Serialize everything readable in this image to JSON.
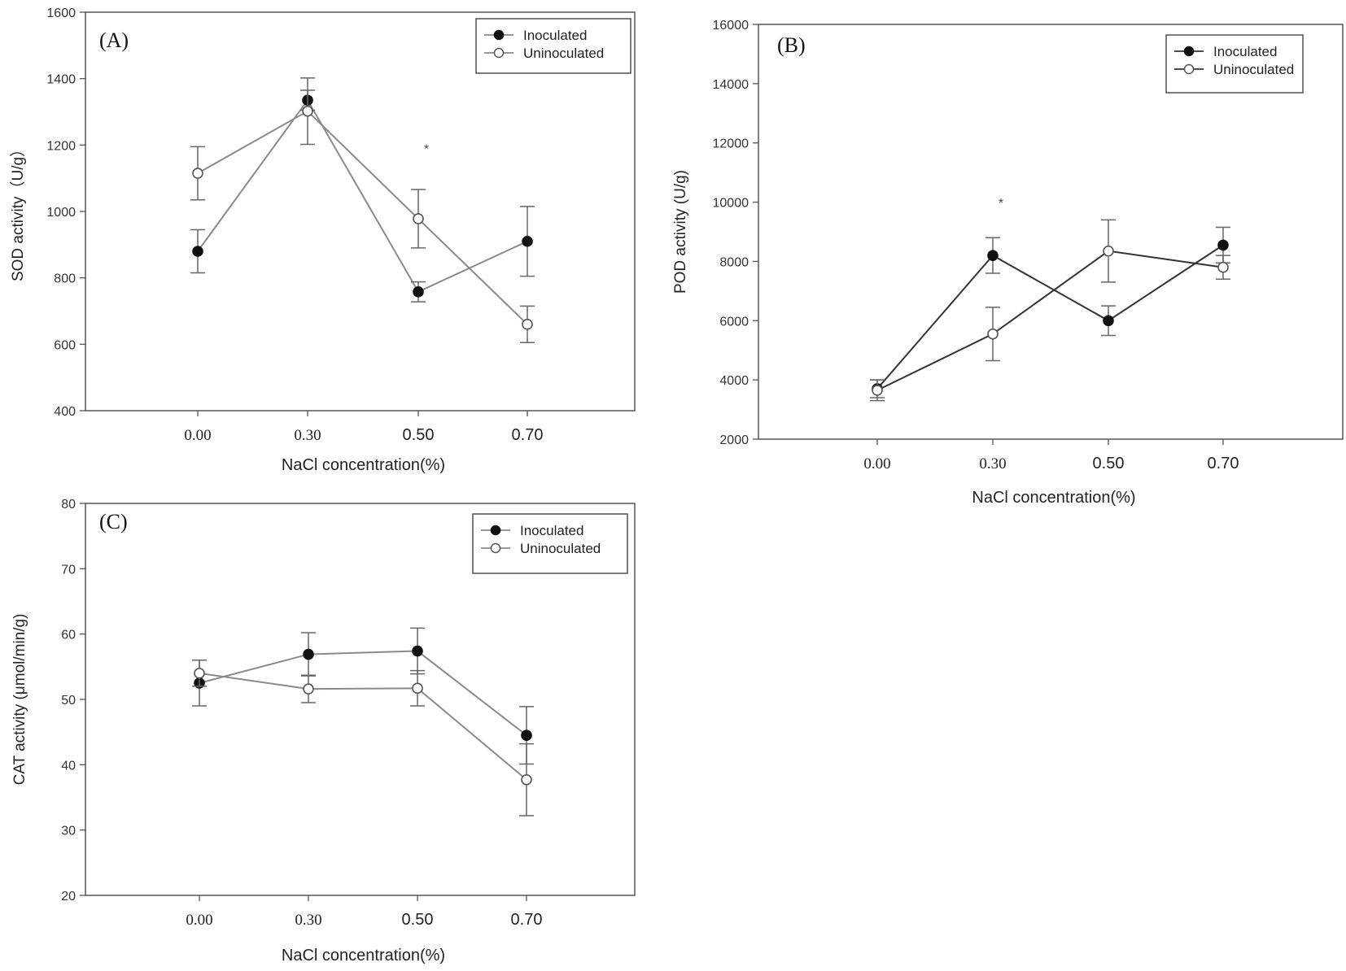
{
  "chart_data": [
    {
      "type": "line",
      "panel": "(A)",
      "xlabel": "NaCl concentration(%)",
      "ylabel": "SOD activity（U/g）",
      "categories": [
        "0.00",
        "0.30",
        "0.50",
        "0.70"
      ],
      "yticks": [
        "400",
        "600",
        "800",
        "1000",
        "1200",
        "1400",
        "1600"
      ],
      "ylim": [
        400,
        1600
      ],
      "grid": false,
      "legend_position": "top-right",
      "series": [
        {
          "name": "Inoculated",
          "marker": "filled",
          "color": "#8a8a8a",
          "values": [
            880,
            1335,
            758,
            910
          ],
          "errors": [
            65,
            30,
            30,
            105
          ]
        },
        {
          "name": "Uninoculated",
          "marker": "open",
          "color": "#8a8a8a",
          "values": [
            1115,
            1302,
            978,
            660
          ],
          "errors": [
            80,
            100,
            88,
            55
          ]
        }
      ],
      "annotations": [
        {
          "text": "*",
          "category_index": 2,
          "y": 1195
        }
      ]
    },
    {
      "type": "line",
      "panel": "(B)",
      "xlabel": "NaCl concentration(%)",
      "ylabel": "POD activity (U/g)",
      "categories": [
        "0.00",
        "0.30",
        "0.50",
        "0.70"
      ],
      "yticks": [
        "2000",
        "4000",
        "6000",
        "8000",
        "10000",
        "12000",
        "14000",
        "16000"
      ],
      "ylim": [
        2000,
        16000
      ],
      "grid": false,
      "legend_position": "top-right",
      "series": [
        {
          "name": "Inoculated",
          "marker": "filled",
          "color": "#333333",
          "values": [
            3700,
            8200,
            6000,
            8550
          ],
          "errors": [
            300,
            600,
            500,
            600
          ]
        },
        {
          "name": "Uninoculated",
          "marker": "open",
          "color": "#333333",
          "values": [
            3650,
            5550,
            8350,
            7800
          ],
          "errors": [
            350,
            900,
            1050,
            400
          ]
        }
      ],
      "annotations": [
        {
          "text": "*",
          "category_index": 1,
          "y": 10050
        }
      ]
    },
    {
      "type": "line",
      "panel": "(C)",
      "xlabel": "NaCl concentration(%)",
      "ylabel": "CAT activity (μmol/min/g)",
      "categories": [
        "0.00",
        "0.30",
        "0.50",
        "0.70"
      ],
      "yticks": [
        "20",
        "30",
        "40",
        "50",
        "60",
        "70",
        "80"
      ],
      "ylim": [
        20,
        80
      ],
      "grid": false,
      "legend_position": "top-right",
      "series": [
        {
          "name": "Inoculated",
          "marker": "filled",
          "color": "#8a8a8a",
          "values": [
            52.5,
            56.9,
            57.4,
            44.5
          ],
          "errors": [
            3.5,
            3.3,
            3.5,
            4.4
          ]
        },
        {
          "name": "Uninoculated",
          "marker": "open",
          "color": "#8a8a8a",
          "values": [
            54.0,
            51.6,
            51.7,
            37.7
          ],
          "errors": [
            2.0,
            2.1,
            2.7,
            5.5
          ]
        }
      ],
      "annotations": []
    }
  ]
}
